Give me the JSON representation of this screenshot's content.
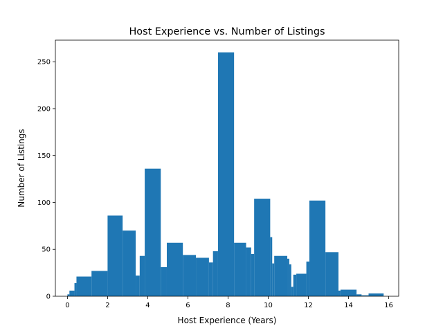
{
  "chart_data": {
    "type": "bar",
    "title": "Host Experience vs. Number of Listings",
    "xlabel": "Host Experience (Years)",
    "ylabel": "Number of Listings",
    "xlim": [
      -0.6,
      16.5
    ],
    "ylim": [
      0,
      273
    ],
    "xticks": [
      0,
      2,
      4,
      6,
      8,
      10,
      12,
      14,
      16
    ],
    "yticks": [
      0,
      50,
      100,
      150,
      200,
      250
    ],
    "grid": false,
    "color": "#1f77b4",
    "bars": [
      {
        "x0": 0.0,
        "x1": 0.1,
        "value": 2
      },
      {
        "x0": 0.1,
        "x1": 0.35,
        "value": 6
      },
      {
        "x0": 0.35,
        "x1": 0.45,
        "value": 14
      },
      {
        "x0": 0.45,
        "x1": 1.2,
        "value": 21
      },
      {
        "x0": 1.2,
        "x1": 2.0,
        "value": 27
      },
      {
        "x0": 2.0,
        "x1": 2.75,
        "value": 86
      },
      {
        "x0": 2.75,
        "x1": 3.4,
        "value": 70
      },
      {
        "x0": 3.4,
        "x1": 3.6,
        "value": 22
      },
      {
        "x0": 3.6,
        "x1": 3.85,
        "value": 43
      },
      {
        "x0": 3.85,
        "x1": 4.65,
        "value": 136
      },
      {
        "x0": 4.65,
        "x1": 4.95,
        "value": 31
      },
      {
        "x0": 4.95,
        "x1": 5.75,
        "value": 57
      },
      {
        "x0": 5.75,
        "x1": 6.4,
        "value": 44
      },
      {
        "x0": 6.4,
        "x1": 7.05,
        "value": 41
      },
      {
        "x0": 7.05,
        "x1": 7.25,
        "value": 36
      },
      {
        "x0": 7.25,
        "x1": 7.5,
        "value": 48
      },
      {
        "x0": 7.5,
        "x1": 8.3,
        "value": 260
      },
      {
        "x0": 8.3,
        "x1": 8.9,
        "value": 57
      },
      {
        "x0": 8.9,
        "x1": 9.15,
        "value": 52
      },
      {
        "x0": 9.15,
        "x1": 9.3,
        "value": 45
      },
      {
        "x0": 9.3,
        "x1": 10.1,
        "value": 104
      },
      {
        "x0": 10.1,
        "x1": 10.2,
        "value": 63
      },
      {
        "x0": 10.2,
        "x1": 10.3,
        "value": 35
      },
      {
        "x0": 10.3,
        "x1": 10.95,
        "value": 43
      },
      {
        "x0": 10.95,
        "x1": 11.05,
        "value": 40
      },
      {
        "x0": 11.05,
        "x1": 11.15,
        "value": 34
      },
      {
        "x0": 11.15,
        "x1": 11.25,
        "value": 10
      },
      {
        "x0": 11.25,
        "x1": 11.4,
        "value": 23
      },
      {
        "x0": 11.4,
        "x1": 11.9,
        "value": 24
      },
      {
        "x0": 11.9,
        "x1": 12.05,
        "value": 37
      },
      {
        "x0": 12.05,
        "x1": 12.85,
        "value": 102
      },
      {
        "x0": 12.85,
        "x1": 13.5,
        "value": 47
      },
      {
        "x0": 13.5,
        "x1": 13.6,
        "value": 6
      },
      {
        "x0": 13.6,
        "x1": 14.4,
        "value": 7
      },
      {
        "x0": 14.4,
        "x1": 14.65,
        "value": 2
      },
      {
        "x0": 14.65,
        "x1": 15.0,
        "value": 1
      },
      {
        "x0": 15.0,
        "x1": 15.75,
        "value": 3
      }
    ]
  }
}
